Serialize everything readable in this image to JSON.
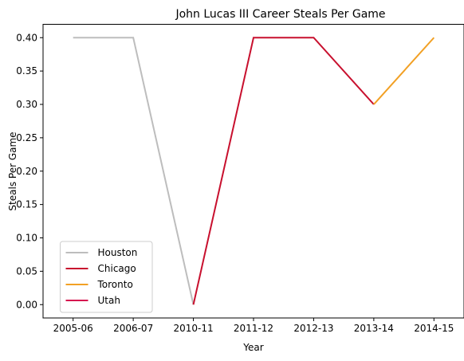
{
  "chart_data": {
    "type": "line",
    "title": "John Lucas III Career Steals Per Game",
    "xlabel": "Year",
    "ylabel": "Steals Per Game",
    "categories": [
      "2005-06",
      "2006-07",
      "2010-11",
      "2011-12",
      "2012-13",
      "2013-14",
      "2014-15"
    ],
    "yticks": [
      "0.00",
      "0.05",
      "0.10",
      "0.15",
      "0.20",
      "0.25",
      "0.30",
      "0.35",
      "0.40"
    ],
    "ylim": [
      -0.02,
      0.42
    ],
    "grid": false,
    "legend_position": "lower-left",
    "series": [
      {
        "name": "Houston",
        "color": "#bdbdbd",
        "points": [
          {
            "x": "2005-06",
            "y": 0.4
          },
          {
            "x": "2006-07",
            "y": 0.4
          },
          {
            "x": "2010-11",
            "y": 0.0
          }
        ]
      },
      {
        "name": "Chicago",
        "color": "#c8102e",
        "points": [
          {
            "x": "2010-11",
            "y": 0.0
          },
          {
            "x": "2011-12",
            "y": 0.4
          },
          {
            "x": "2012-13",
            "y": 0.4
          },
          {
            "x": "2013-14",
            "y": 0.3
          }
        ]
      },
      {
        "name": "Toronto",
        "color": "#f2a024",
        "points": [
          {
            "x": "2013-14",
            "y": 0.3
          },
          {
            "x": "2014-15",
            "y": 0.4
          }
        ]
      },
      {
        "name": "Utah",
        "color": "#d6174f",
        "points": []
      }
    ]
  }
}
